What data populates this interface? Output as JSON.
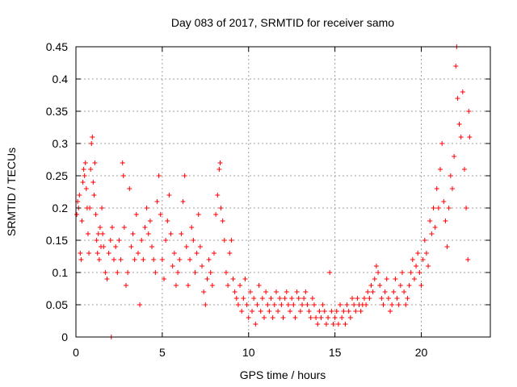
{
  "chart_data": {
    "type": "scatter",
    "title": "Day 083 of 2017, SRMTID for receiver samo",
    "xlabel": "GPS time / hours",
    "ylabel": "SRMTID / TECUs",
    "xlim": [
      0,
      24
    ],
    "ylim": [
      0,
      0.45
    ],
    "xticks": [
      0,
      5,
      10,
      15,
      20
    ],
    "xtick_labels": [
      "0",
      "5",
      "10",
      "15",
      "20"
    ],
    "yticks": [
      0,
      0.05,
      0.1,
      0.15,
      0.2,
      0.25,
      0.3,
      0.35,
      0.4,
      0.45
    ],
    "ytick_labels": [
      "0",
      "0.05",
      "0.1",
      "0.15",
      "0.2",
      "0.25",
      "0.3",
      "0.35",
      "0.4",
      "0.45"
    ],
    "grid": true,
    "marker": "plus",
    "color": "#ff0000",
    "series": [
      {
        "name": "SRMTID",
        "points": [
          [
            0.05,
            0.19
          ],
          [
            0.1,
            0.21
          ],
          [
            0.15,
            0.2
          ],
          [
            0.2,
            0.22
          ],
          [
            0.25,
            0.13
          ],
          [
            0.3,
            0.12
          ],
          [
            0.35,
            0.18
          ],
          [
            0.4,
            0.24
          ],
          [
            0.45,
            0.26
          ],
          [
            0.5,
            0.25
          ],
          [
            0.55,
            0.27
          ],
          [
            0.6,
            0.23
          ],
          [
            0.65,
            0.2
          ],
          [
            0.7,
            0.16
          ],
          [
            0.75,
            0.13
          ],
          [
            0.8,
            0.2
          ],
          [
            0.85,
            0.26
          ],
          [
            0.9,
            0.3
          ],
          [
            0.95,
            0.31
          ],
          [
            1.0,
            0.24
          ],
          [
            1.05,
            0.22
          ],
          [
            1.1,
            0.27
          ],
          [
            1.15,
            0.19
          ],
          [
            1.2,
            0.15
          ],
          [
            1.25,
            0.13
          ],
          [
            1.3,
            0.16
          ],
          [
            1.35,
            0.12
          ],
          [
            1.4,
            0.17
          ],
          [
            1.45,
            0.14
          ],
          [
            1.5,
            0.2
          ],
          [
            1.55,
            0.16
          ],
          [
            1.6,
            0.14
          ],
          [
            1.7,
            0.1
          ],
          [
            1.8,
            0.09
          ],
          [
            1.9,
            0.13
          ],
          [
            2.0,
            0.15
          ],
          [
            2.05,
            0.0
          ],
          [
            2.1,
            0.17
          ],
          [
            2.2,
            0.12
          ],
          [
            2.3,
            0.14
          ],
          [
            2.4,
            0.1
          ],
          [
            2.5,
            0.15
          ],
          [
            2.6,
            0.12
          ],
          [
            2.7,
            0.27
          ],
          [
            2.75,
            0.25
          ],
          [
            2.8,
            0.17
          ],
          [
            2.9,
            0.08
          ],
          [
            3.0,
            0.1
          ],
          [
            3.1,
            0.23
          ],
          [
            3.2,
            0.14
          ],
          [
            3.3,
            0.16
          ],
          [
            3.4,
            0.12
          ],
          [
            3.5,
            0.19
          ],
          [
            3.6,
            0.13
          ],
          [
            3.7,
            0.05
          ],
          [
            3.8,
            0.15
          ],
          [
            3.9,
            0.12
          ],
          [
            4.0,
            0.17
          ],
          [
            4.1,
            0.2
          ],
          [
            4.2,
            0.16
          ],
          [
            4.3,
            0.18
          ],
          [
            4.4,
            0.14
          ],
          [
            4.5,
            0.12
          ],
          [
            4.6,
            0.1
          ],
          [
            4.7,
            0.21
          ],
          [
            4.8,
            0.25
          ],
          [
            4.9,
            0.19
          ],
          [
            5.0,
            0.12
          ],
          [
            5.1,
            0.09
          ],
          [
            5.2,
            0.15
          ],
          [
            5.3,
            0.18
          ],
          [
            5.4,
            0.22
          ],
          [
            5.5,
            0.16
          ],
          [
            5.6,
            0.11
          ],
          [
            5.7,
            0.13
          ],
          [
            5.8,
            0.08
          ],
          [
            5.9,
            0.1
          ],
          [
            6.0,
            0.12
          ],
          [
            6.1,
            0.16
          ],
          [
            6.2,
            0.21
          ],
          [
            6.3,
            0.25
          ],
          [
            6.4,
            0.14
          ],
          [
            6.5,
            0.08
          ],
          [
            6.6,
            0.12
          ],
          [
            6.7,
            0.17
          ],
          [
            6.8,
            0.15
          ],
          [
            6.9,
            0.1
          ],
          [
            7.0,
            0.13
          ],
          [
            7.1,
            0.19
          ],
          [
            7.2,
            0.14
          ],
          [
            7.3,
            0.11
          ],
          [
            7.4,
            0.07
          ],
          [
            7.5,
            0.05
          ],
          [
            7.6,
            0.09
          ],
          [
            7.7,
            0.12
          ],
          [
            7.8,
            0.1
          ],
          [
            7.9,
            0.08
          ],
          [
            8.0,
            0.13
          ],
          [
            8.1,
            0.19
          ],
          [
            8.2,
            0.22
          ],
          [
            8.3,
            0.26
          ],
          [
            8.35,
            0.27
          ],
          [
            8.4,
            0.2
          ],
          [
            8.5,
            0.18
          ],
          [
            8.6,
            0.15
          ],
          [
            8.7,
            0.1
          ],
          [
            8.8,
            0.08
          ],
          [
            8.9,
            0.13
          ],
          [
            9.0,
            0.15
          ],
          [
            9.1,
            0.09
          ],
          [
            9.2,
            0.07
          ],
          [
            9.3,
            0.06
          ],
          [
            9.4,
            0.05
          ],
          [
            9.5,
            0.08
          ],
          [
            9.6,
            0.04
          ],
          [
            9.7,
            0.06
          ],
          [
            9.8,
            0.09
          ],
          [
            9.9,
            0.05
          ],
          [
            10.0,
            0.03
          ],
          [
            10.1,
            0.07
          ],
          [
            10.2,
            0.04
          ],
          [
            10.3,
            0.06
          ],
          [
            10.4,
            0.02
          ],
          [
            10.5,
            0.05
          ],
          [
            10.6,
            0.08
          ],
          [
            10.7,
            0.04
          ],
          [
            10.8,
            0.06
          ],
          [
            10.9,
            0.03
          ],
          [
            11.0,
            0.07
          ],
          [
            11.1,
            0.05
          ],
          [
            11.2,
            0.04
          ],
          [
            11.3,
            0.06
          ],
          [
            11.4,
            0.03
          ],
          [
            11.5,
            0.05
          ],
          [
            11.6,
            0.07
          ],
          [
            11.7,
            0.04
          ],
          [
            11.8,
            0.06
          ],
          [
            11.9,
            0.05
          ],
          [
            12.0,
            0.03
          ],
          [
            12.1,
            0.06
          ],
          [
            12.2,
            0.07
          ],
          [
            12.3,
            0.05
          ],
          [
            12.4,
            0.04
          ],
          [
            12.5,
            0.06
          ],
          [
            12.6,
            0.05
          ],
          [
            12.7,
            0.03
          ],
          [
            12.8,
            0.07
          ],
          [
            12.9,
            0.06
          ],
          [
            13.0,
            0.04
          ],
          [
            13.1,
            0.05
          ],
          [
            13.2,
            0.06
          ],
          [
            13.3,
            0.07
          ],
          [
            13.4,
            0.05
          ],
          [
            13.5,
            0.04
          ],
          [
            13.6,
            0.03
          ],
          [
            13.7,
            0.06
          ],
          [
            13.8,
            0.05
          ],
          [
            13.9,
            0.03
          ],
          [
            14.0,
            0.02
          ],
          [
            14.1,
            0.04
          ],
          [
            14.2,
            0.03
          ],
          [
            14.3,
            0.05
          ],
          [
            14.4,
            0.04
          ],
          [
            14.5,
            0.02
          ],
          [
            14.6,
            0.03
          ],
          [
            14.7,
            0.1
          ],
          [
            14.8,
            0.04
          ],
          [
            14.9,
            0.02
          ],
          [
            15.0,
            0.03
          ],
          [
            15.1,
            0.04
          ],
          [
            15.2,
            0.02
          ],
          [
            15.3,
            0.05
          ],
          [
            15.4,
            0.03
          ],
          [
            15.5,
            0.04
          ],
          [
            15.6,
            0.02
          ],
          [
            15.7,
            0.05
          ],
          [
            15.8,
            0.04
          ],
          [
            15.9,
            0.03
          ],
          [
            16.0,
            0.06
          ],
          [
            16.1,
            0.05
          ],
          [
            16.2,
            0.04
          ],
          [
            16.3,
            0.06
          ],
          [
            16.4,
            0.05
          ],
          [
            16.5,
            0.04
          ],
          [
            16.6,
            0.05
          ],
          [
            16.7,
            0.06
          ],
          [
            16.8,
            0.05
          ],
          [
            16.9,
            0.07
          ],
          [
            17.0,
            0.06
          ],
          [
            17.1,
            0.08
          ],
          [
            17.2,
            0.07
          ],
          [
            17.3,
            0.09
          ],
          [
            17.4,
            0.11
          ],
          [
            17.5,
            0.1
          ],
          [
            17.6,
            0.08
          ],
          [
            17.7,
            0.06
          ],
          [
            17.8,
            0.05
          ],
          [
            17.9,
            0.07
          ],
          [
            18.0,
            0.09
          ],
          [
            18.1,
            0.06
          ],
          [
            18.2,
            0.04
          ],
          [
            18.3,
            0.05
          ],
          [
            18.4,
            0.07
          ],
          [
            18.5,
            0.09
          ],
          [
            18.6,
            0.06
          ],
          [
            18.7,
            0.05
          ],
          [
            18.8,
            0.08
          ],
          [
            18.9,
            0.1
          ],
          [
            19.0,
            0.07
          ],
          [
            19.1,
            0.05
          ],
          [
            19.2,
            0.06
          ],
          [
            19.3,
            0.08
          ],
          [
            19.4,
            0.1
          ],
          [
            19.5,
            0.12
          ],
          [
            19.6,
            0.09
          ],
          [
            19.7,
            0.11
          ],
          [
            19.8,
            0.13
          ],
          [
            19.9,
            0.1
          ],
          [
            20.0,
            0.08
          ],
          [
            20.1,
            0.12
          ],
          [
            20.2,
            0.15
          ],
          [
            20.3,
            0.13
          ],
          [
            20.4,
            0.11
          ],
          [
            20.5,
            0.18
          ],
          [
            20.6,
            0.16
          ],
          [
            20.7,
            0.2
          ],
          [
            20.8,
            0.17
          ],
          [
            20.9,
            0.23
          ],
          [
            21.0,
            0.2
          ],
          [
            21.1,
            0.26
          ],
          [
            21.2,
            0.3
          ],
          [
            21.3,
            0.21
          ],
          [
            21.4,
            0.18
          ],
          [
            21.5,
            0.14
          ],
          [
            21.6,
            0.2
          ],
          [
            21.7,
            0.25
          ],
          [
            21.8,
            0.23
          ],
          [
            21.9,
            0.28
          ],
          [
            22.0,
            0.42
          ],
          [
            22.05,
            0.45
          ],
          [
            22.1,
            0.37
          ],
          [
            22.2,
            0.33
          ],
          [
            22.3,
            0.31
          ],
          [
            22.4,
            0.38
          ],
          [
            22.5,
            0.26
          ],
          [
            22.6,
            0.2
          ],
          [
            22.7,
            0.12
          ],
          [
            22.75,
            0.35
          ],
          [
            22.8,
            0.31
          ]
        ]
      }
    ]
  }
}
